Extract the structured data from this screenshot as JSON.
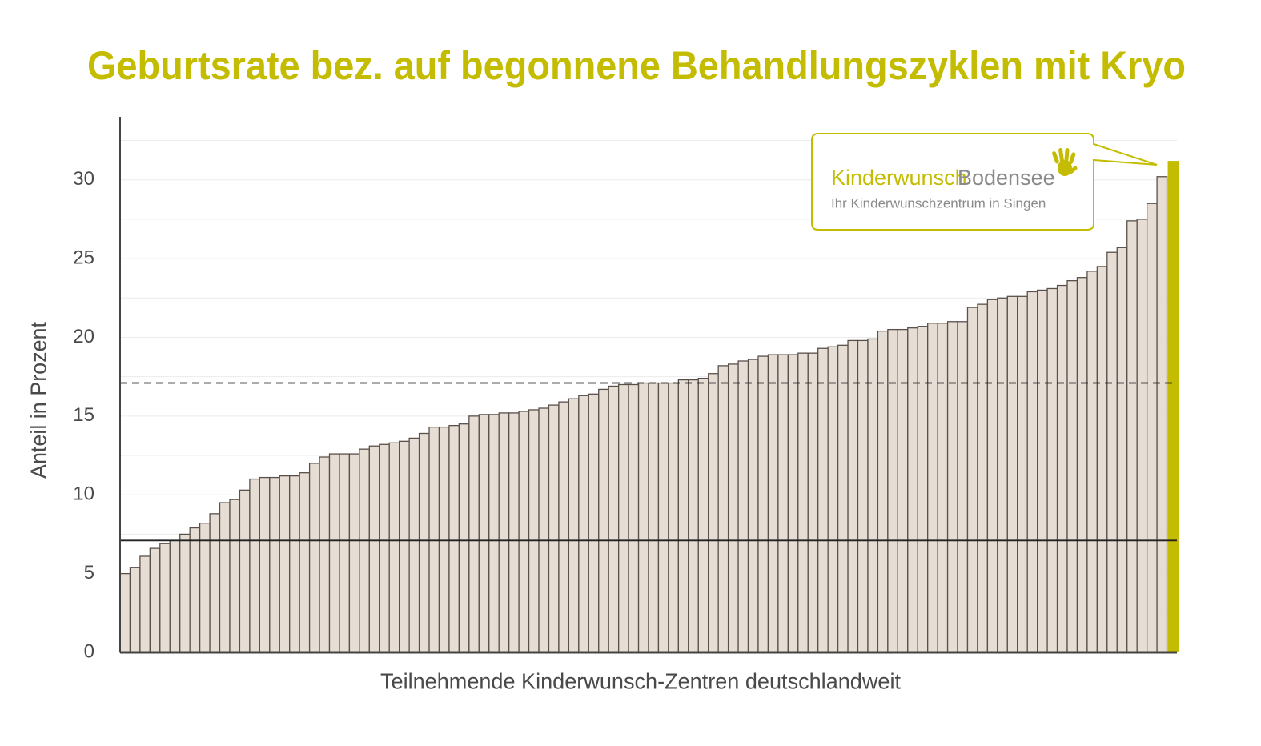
{
  "chart_data": {
    "type": "bar",
    "title": "Geburtsrate bez. auf begonnene Behandlungszyklen mit Kryo",
    "x_label": "Teilnehmende Kinderwunsch-Zentren deutschlandweit",
    "y_label": "Anteil in Prozent",
    "values": [
      5.0,
      5.4,
      6.1,
      6.6,
      6.9,
      7.1,
      7.5,
      7.9,
      8.2,
      8.8,
      9.5,
      9.7,
      10.3,
      11.0,
      11.1,
      11.1,
      11.2,
      11.2,
      11.4,
      12.0,
      12.4,
      12.6,
      12.6,
      12.6,
      12.9,
      13.1,
      13.2,
      13.3,
      13.4,
      13.6,
      13.9,
      14.3,
      14.3,
      14.4,
      14.5,
      15.0,
      15.1,
      15.1,
      15.2,
      15.2,
      15.3,
      15.4,
      15.5,
      15.7,
      15.9,
      16.1,
      16.3,
      16.4,
      16.7,
      16.9,
      17.0,
      17.0,
      17.1,
      17.1,
      17.1,
      17.1,
      17.3,
      17.3,
      17.4,
      17.7,
      18.2,
      18.3,
      18.5,
      18.6,
      18.8,
      18.9,
      18.9,
      18.9,
      19.0,
      19.0,
      19.3,
      19.4,
      19.5,
      19.8,
      19.8,
      19.9,
      20.4,
      20.5,
      20.5,
      20.6,
      20.7,
      20.9,
      20.9,
      21.0,
      21.0,
      21.9,
      22.1,
      22.4,
      22.5,
      22.6,
      22.6,
      22.9,
      23.0,
      23.1,
      23.3,
      23.6,
      23.8,
      24.2,
      24.5,
      25.4,
      25.7,
      27.4,
      27.5,
      28.5,
      30.2,
      31.2
    ],
    "color": "#e6ddd5",
    "edge_color": "#5a504a",
    "highlight_index": 105,
    "highlight_color": "#c4bc00",
    "ylim": [
      0,
      34
    ],
    "yticks": [
      0,
      5,
      10,
      15,
      20,
      25,
      30
    ],
    "minor_yticks": [
      2.5,
      7.5,
      12.5,
      17.5,
      22.5,
      27.5,
      32.5
    ],
    "grid": true,
    "reference_lines": [
      {
        "value": 17.1,
        "style": "dashed"
      },
      {
        "value": 7.1,
        "style": "solid"
      }
    ],
    "annotation": {
      "brand_a": "Kinderwunsch",
      "brand_b": "Bodensee",
      "tagline": "Ihr Kinderwunschzentrum in Singen"
    }
  }
}
